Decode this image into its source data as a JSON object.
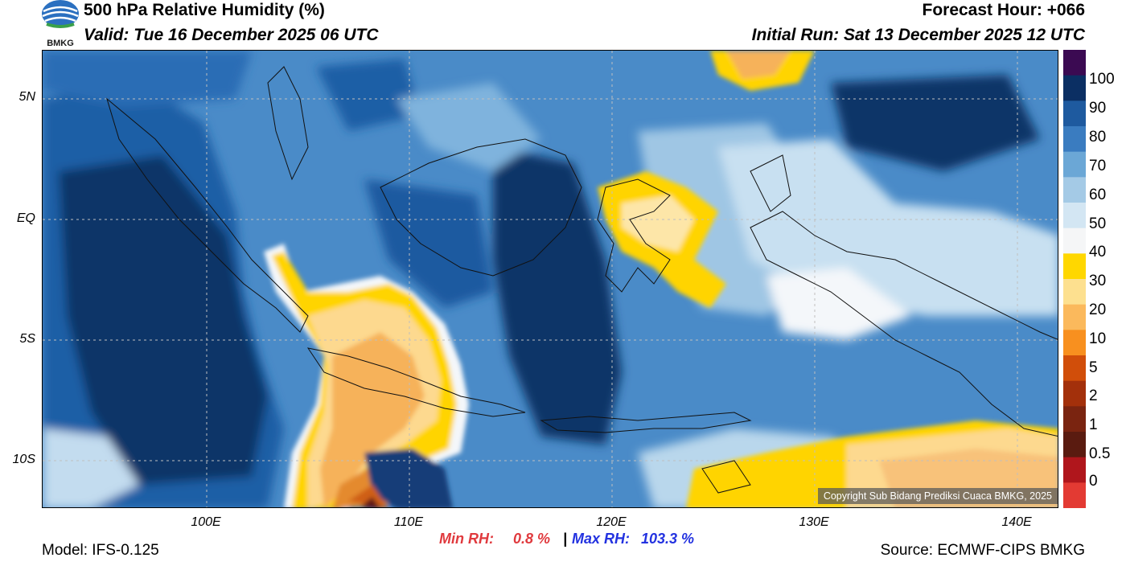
{
  "header": {
    "title": "500 hPa Relative Humidity (%)",
    "valid": "Valid: Tue 16 December 2025 06 UTC",
    "forecast_hour": "Forecast Hour: +066",
    "initial_run": "Initial Run: Sat 13 December 2025 12 UTC",
    "logo_text": "BMKG"
  },
  "map": {
    "lat_labels": [
      "5N",
      "EQ",
      "5S",
      "10S"
    ],
    "lon_labels": [
      "100E",
      "110E",
      "120E",
      "130E",
      "140E"
    ],
    "copyright": "Copyright Sub Bidang Prediksi Cuaca BMKG, 2025",
    "colors": {
      "very_humid": "#0b2f63",
      "humid": "#2b6db5",
      "moist": "#5fa0d4",
      "mid": "#b6d6ec",
      "dry_white": "#f4f7fa",
      "yellow": "#ffd400",
      "pale_orange": "#fdd98f",
      "orange": "#f6a94a",
      "dark_orange": "#cf5e18",
      "maroon": "#5e1812",
      "purple": "#3b0a52"
    }
  },
  "colorbar": {
    "labels": [
      "100",
      "90",
      "80",
      "70",
      "60",
      "50",
      "40",
      "30",
      "20",
      "10",
      "5",
      "2",
      "1",
      "0.5",
      "0"
    ],
    "colors": [
      "#3b0a52",
      "#0b2f63",
      "#1e5a9f",
      "#3a7cc0",
      "#6ba7d6",
      "#a4cae6",
      "#d3e6f3",
      "#f5f6f7",
      "#ffd700",
      "#fde08f",
      "#fbb95c",
      "#f8901f",
      "#d14e0a",
      "#a3300b",
      "#7a2410",
      "#5a1b10",
      "#b0161c",
      "#e33a33"
    ]
  },
  "stats": {
    "min_label": "Min RH:",
    "min_value": "0.8 %",
    "separator": "|",
    "max_label": "Max RH:",
    "max_value": "103.3 %",
    "min_color": "#e03a3e",
    "max_color": "#2332e0"
  },
  "footer": {
    "model": "Model: IFS-0.125",
    "source": "Source: ECMWF-CIPS BMKG"
  }
}
